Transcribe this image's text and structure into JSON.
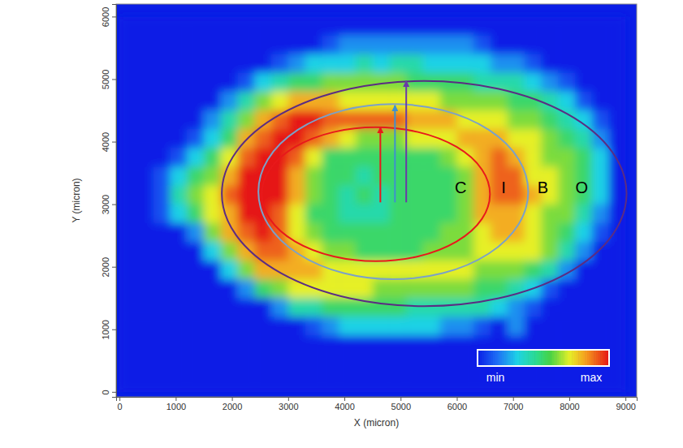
{
  "chart_data": {
    "type": "heatmap",
    "xlabel": "X (micron)",
    "ylabel": "Y (micron)",
    "xlim": [
      -60,
      9200
    ],
    "ylim": [
      -80,
      6200
    ],
    "xticks": [
      0,
      1000,
      2000,
      3000,
      4000,
      5000,
      6000,
      7000,
      8000,
      9000
    ],
    "yticks": [
      0,
      1000,
      2000,
      3000,
      4000,
      5000,
      6000
    ],
    "x_bins": [
      0,
      300,
      600,
      900,
      1200,
      1500,
      1800,
      2100,
      2400,
      2700,
      3000,
      3300,
      3600,
      3900,
      4200,
      4500,
      4800,
      5100,
      5400,
      5700,
      6000,
      6300,
      6600,
      6900,
      7200,
      7500,
      7800,
      8100,
      8400,
      8700,
      9000
    ],
    "y_bins": [
      6000,
      5700,
      5400,
      5100,
      4800,
      4500,
      4200,
      3900,
      3600,
      3300,
      3000,
      2700,
      2400,
      2100,
      1800,
      1500,
      1200,
      900,
      600,
      300,
      0
    ],
    "cells": [
      [
        0,
        0,
        0,
        0,
        0,
        0,
        0,
        0,
        0,
        0,
        0,
        0,
        0,
        0,
        0,
        0,
        0,
        0,
        0,
        0,
        0,
        0,
        0,
        0,
        0,
        0,
        0,
        0,
        0,
        0
      ],
      [
        0,
        0,
        0,
        0,
        0,
        0,
        0,
        0,
        0,
        0,
        0,
        0,
        1,
        2,
        2,
        2,
        2,
        2,
        2,
        2,
        2,
        1,
        0,
        0,
        0,
        0,
        0,
        0,
        0,
        0
      ],
      [
        0,
        0,
        0,
        0,
        0,
        0,
        0,
        0,
        0,
        1,
        2,
        3,
        3,
        3,
        4,
        3,
        4,
        4,
        3,
        3,
        3,
        3,
        2,
        2,
        1,
        0,
        0,
        0,
        0,
        0
      ],
      [
        0,
        0,
        0,
        0,
        0,
        0,
        0,
        1,
        3,
        4,
        5,
        5,
        6,
        6,
        6,
        6,
        6,
        5,
        5,
        5,
        5,
        4,
        4,
        4,
        3,
        2,
        1,
        0,
        0,
        0
      ],
      [
        0,
        0,
        0,
        0,
        0,
        0,
        2,
        4,
        6,
        7,
        8,
        8,
        8,
        7,
        7,
        7,
        7,
        7,
        7,
        6,
        6,
        6,
        6,
        5,
        5,
        4,
        3,
        1,
        0,
        0
      ],
      [
        0,
        0,
        0,
        0,
        0,
        2,
        4,
        6,
        8,
        9,
        10,
        10,
        9,
        9,
        9,
        9,
        9,
        8,
        8,
        8,
        7,
        7,
        7,
        6,
        6,
        5,
        4,
        3,
        1,
        0
      ],
      [
        0,
        0,
        0,
        0,
        1,
        3,
        5,
        8,
        9,
        10,
        10,
        9,
        8,
        7,
        6,
        6,
        6,
        7,
        7,
        7,
        8,
        8,
        8,
        7,
        7,
        6,
        5,
        4,
        2,
        0
      ],
      [
        0,
        0,
        0,
        1,
        3,
        5,
        7,
        9,
        10,
        10,
        9,
        7,
        5,
        5,
        5,
        5,
        5,
        5,
        5,
        6,
        7,
        8,
        9,
        8,
        7,
        6,
        6,
        5,
        3,
        0
      ],
      [
        0,
        0,
        1,
        3,
        5,
        6,
        8,
        10,
        10,
        10,
        8,
        6,
        5,
        5,
        4,
        5,
        5,
        5,
        5,
        5,
        6,
        8,
        9,
        9,
        7,
        7,
        6,
        5,
        3,
        0
      ],
      [
        0,
        0,
        1,
        4,
        6,
        7,
        9,
        10,
        10,
        10,
        8,
        6,
        5,
        4,
        5,
        4,
        5,
        5,
        5,
        5,
        6,
        8,
        9,
        9,
        8,
        7,
        6,
        5,
        3,
        0
      ],
      [
        0,
        0,
        1,
        3,
        5,
        7,
        8,
        10,
        10,
        9,
        7,
        5,
        5,
        4,
        4,
        4,
        5,
        5,
        5,
        5,
        6,
        8,
        8,
        8,
        7,
        6,
        6,
        4,
        2,
        0
      ],
      [
        0,
        0,
        0,
        0,
        2,
        6,
        8,
        9,
        10,
        9,
        7,
        6,
        5,
        5,
        5,
        5,
        5,
        5,
        5,
        6,
        6,
        7,
        8,
        8,
        7,
        6,
        5,
        3,
        1,
        0
      ],
      [
        0,
        0,
        0,
        0,
        0,
        3,
        6,
        8,
        9,
        9,
        8,
        7,
        6,
        6,
        5,
        5,
        5,
        5,
        6,
        6,
        6,
        7,
        7,
        7,
        7,
        6,
        4,
        2,
        0,
        0
      ],
      [
        0,
        0,
        0,
        0,
        0,
        0,
        3,
        6,
        8,
        8,
        8,
        8,
        7,
        7,
        7,
        7,
        7,
        7,
        7,
        7,
        7,
        6,
        6,
        6,
        5,
        4,
        2,
        0,
        0,
        0
      ],
      [
        0,
        0,
        0,
        0,
        0,
        0,
        0,
        2,
        5,
        6,
        7,
        7,
        7,
        7,
        7,
        6,
        6,
        6,
        6,
        6,
        6,
        5,
        5,
        4,
        3,
        1,
        0,
        0,
        0,
        0
      ],
      [
        0,
        0,
        0,
        0,
        0,
        0,
        0,
        0,
        0,
        2,
        4,
        4,
        5,
        5,
        5,
        5,
        5,
        4,
        4,
        4,
        4,
        4,
        3,
        2,
        1,
        0,
        0,
        0,
        0,
        0
      ],
      [
        0,
        0,
        0,
        0,
        0,
        0,
        0,
        0,
        0,
        0,
        0,
        1,
        2,
        3,
        3,
        3,
        3,
        3,
        3,
        2,
        2,
        1,
        0,
        2,
        0,
        0,
        0,
        0,
        0,
        0
      ],
      [
        0,
        0,
        0,
        0,
        0,
        0,
        0,
        0,
        0,
        0,
        0,
        0,
        0,
        0,
        0,
        0,
        0,
        0,
        0,
        0,
        0,
        0,
        0,
        0,
        0,
        0,
        0,
        0,
        0,
        0
      ],
      [
        0,
        0,
        0,
        0,
        0,
        0,
        0,
        0,
        0,
        0,
        0,
        0,
        0,
        0,
        0,
        0,
        0,
        0,
        0,
        0,
        0,
        0,
        0,
        0,
        0,
        0,
        0,
        0,
        0,
        0
      ],
      [
        0,
        0,
        0,
        0,
        0,
        0,
        0,
        0,
        0,
        0,
        0,
        0,
        0,
        0,
        0,
        0,
        0,
        0,
        0,
        0,
        0,
        0,
        0,
        0,
        0,
        0,
        0,
        0,
        0,
        0
      ]
    ],
    "colorbar": {
      "range": [
        0,
        10
      ],
      "ticks": [
        {
          "value": 0,
          "label": "min"
        },
        {
          "value": 10,
          "label": "max"
        }
      ]
    },
    "ellipses": [
      {
        "center": [
          4560,
          3160
        ],
        "radii": [
          2030,
          1070
        ],
        "color": "#e8191b"
      },
      {
        "center": [
          4870,
          3200
        ],
        "radii": [
          2400,
          1400
        ],
        "color": "#7ba1c8"
      },
      {
        "center": [
          5420,
          3170
        ],
        "radii": [
          3600,
          1800
        ],
        "color": "#5b2c83"
      }
    ],
    "arrows": [
      {
        "from": [
          4640,
          3030
        ],
        "to": [
          4640,
          4230
        ],
        "color": "#e8191b"
      },
      {
        "from": [
          4900,
          3030
        ],
        "to": [
          4900,
          4580
        ],
        "color": "#3f8fd0"
      },
      {
        "from": [
          5100,
          3030
        ],
        "to": [
          5100,
          4970
        ],
        "color": "#6a3aa8"
      }
    ],
    "annotations": [
      {
        "text": "C",
        "x": 6070,
        "y": 3250
      },
      {
        "text": "I",
        "x": 6830,
        "y": 3250
      },
      {
        "text": "B",
        "x": 7530,
        "y": 3250
      },
      {
        "text": "O",
        "x": 8220,
        "y": 3250
      }
    ]
  }
}
